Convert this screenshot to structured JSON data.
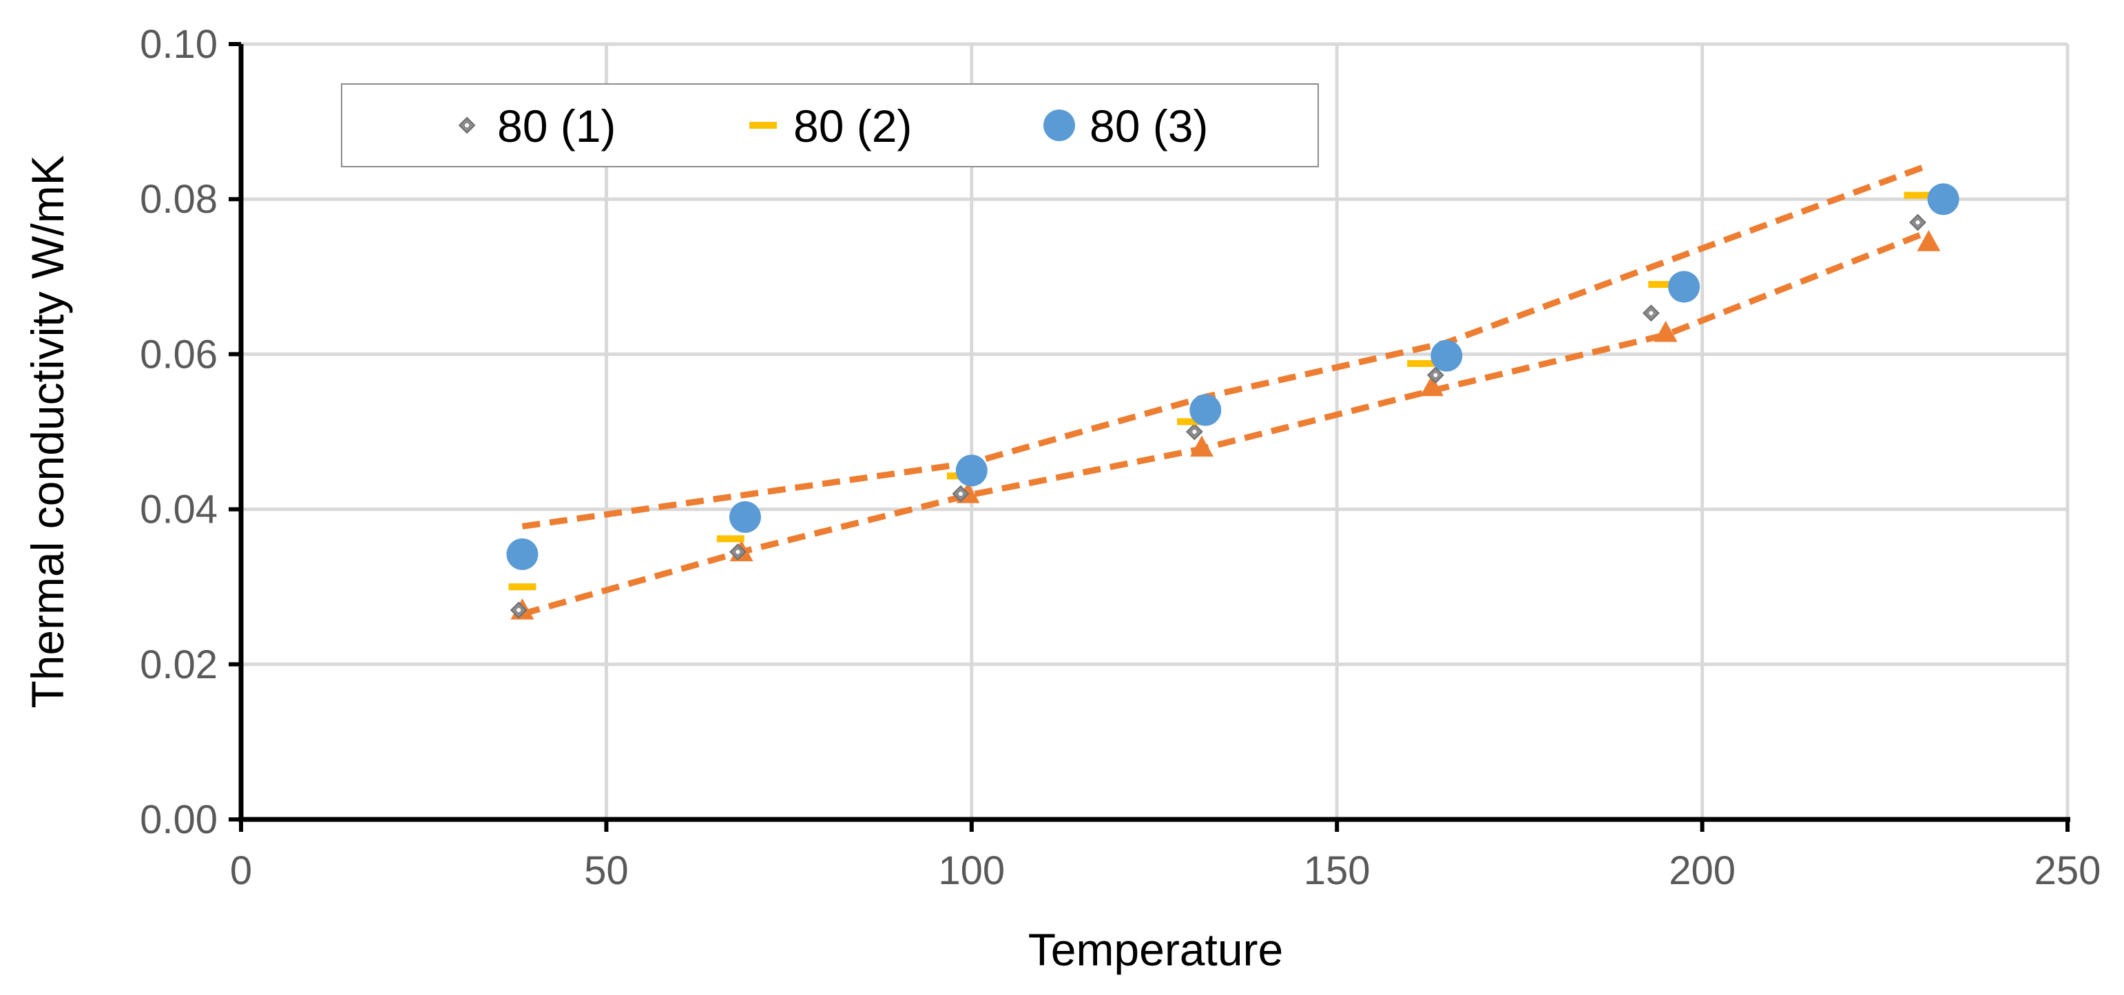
{
  "chart_data": {
    "type": "scatter",
    "title": "",
    "xlabel": "Temperature",
    "ylabel": "Thermal conductivity W/mK",
    "xlim": [
      0,
      250
    ],
    "ylim": [
      0,
      0.1
    ],
    "x_ticks": [
      0,
      50,
      100,
      150,
      200,
      250
    ],
    "x_tick_labels": [
      "0",
      "50",
      "100",
      "150",
      "200",
      "250"
    ],
    "y_ticks": [
      0,
      0.02,
      0.04,
      0.06,
      0.08,
      0.1
    ],
    "y_tick_labels": [
      "0.00",
      "0.02",
      "0.04",
      "0.06",
      "0.08",
      "0.10"
    ],
    "grid": true,
    "legend_position": "top-left",
    "series": [
      {
        "name": "80 (1)",
        "marker": "diamond",
        "color": "#8c8c8c",
        "points": [
          {
            "x": 38,
            "y": 0.027
          },
          {
            "x": 68,
            "y": 0.0345
          },
          {
            "x": 98.5,
            "y": 0.042
          },
          {
            "x": 130.5,
            "y": 0.05
          },
          {
            "x": 163.5,
            "y": 0.0573
          },
          {
            "x": 193,
            "y": 0.0653
          },
          {
            "x": 229.5,
            "y": 0.077
          }
        ]
      },
      {
        "name": "80 (2)",
        "marker": "dash",
        "color": "#ffc000",
        "points": [
          {
            "x": 38.5,
            "y": 0.03
          },
          {
            "x": 67,
            "y": 0.0362
          },
          {
            "x": 98.5,
            "y": 0.0443
          },
          {
            "x": 130,
            "y": 0.0513
          },
          {
            "x": 161.5,
            "y": 0.0588
          },
          {
            "x": 194.5,
            "y": 0.069
          },
          {
            "x": 229.5,
            "y": 0.0805
          }
        ]
      },
      {
        "name": "80 (3)",
        "marker": "circle",
        "color": "#5b9bd5",
        "points": [
          {
            "x": 38.5,
            "y": 0.0342
          },
          {
            "x": 69,
            "y": 0.039
          },
          {
            "x": 100,
            "y": 0.045
          },
          {
            "x": 132,
            "y": 0.0528
          },
          {
            "x": 165,
            "y": 0.0598
          },
          {
            "x": 197.5,
            "y": 0.0687
          },
          {
            "x": 233,
            "y": 0.08
          }
        ]
      },
      {
        "name": "",
        "marker": "triangle",
        "color": "#ed7d31",
        "points": [
          {
            "x": 38.5,
            "y": 0.027
          },
          {
            "x": 68.5,
            "y": 0.0345
          },
          {
            "x": 99.5,
            "y": 0.042
          },
          {
            "x": 131.5,
            "y": 0.048
          },
          {
            "x": 163,
            "y": 0.0558
          },
          {
            "x": 195,
            "y": 0.0628
          },
          {
            "x": 231,
            "y": 0.0745
          }
        ]
      }
    ],
    "envelopes": [
      {
        "style": "dashed",
        "color": "#ed7d31",
        "points": [
          {
            "x": 38.5,
            "y": 0.0378
          },
          {
            "x": 100,
            "y": 0.046
          },
          {
            "x": 132,
            "y": 0.0545
          },
          {
            "x": 165,
            "y": 0.0615
          },
          {
            "x": 197.5,
            "y": 0.0728
          },
          {
            "x": 230.5,
            "y": 0.0842
          }
        ]
      },
      {
        "style": "dashed",
        "color": "#ed7d31",
        "points": [
          {
            "x": 38.5,
            "y": 0.0265
          },
          {
            "x": 68.5,
            "y": 0.0345
          },
          {
            "x": 99.5,
            "y": 0.0418
          },
          {
            "x": 131.5,
            "y": 0.0478
          },
          {
            "x": 163,
            "y": 0.0553
          },
          {
            "x": 195,
            "y": 0.0625
          },
          {
            "x": 231,
            "y": 0.0758
          }
        ]
      }
    ]
  }
}
